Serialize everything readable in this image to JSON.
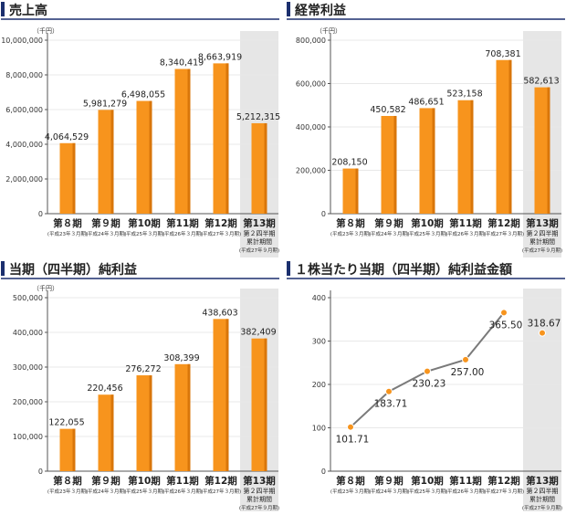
{
  "colors": {
    "bar": "#f7941d",
    "bar_dark": "#d9760a",
    "axis": "#555555",
    "grid": "#e8e8e8",
    "header_accent": "#1b2f6e",
    "header_line": "#1b2f6e",
    "shade": "#e6e6e6",
    "line": "#7a7a7a",
    "point": "#f7941d"
  },
  "periods": [
    "第８期",
    "第９期",
    "第10期",
    "第11期",
    "第12期",
    "第13期"
  ],
  "period_subs": [
    "(平成23年３月期)",
    "(平成24年３月期)",
    "(平成25年３月期)",
    "(平成26年３月期)",
    "(平成27年３月期)"
  ],
  "last_period_notes": [
    "第２四半期",
    "累計期間",
    "(平成27年９月期)"
  ],
  "chart_data": [
    {
      "type": "bar",
      "title": "売上高",
      "unit": "（千円）",
      "categories": [
        "第８期",
        "第９期",
        "第10期",
        "第11期",
        "第12期",
        "第13期"
      ],
      "values": [
        4064529,
        5981279,
        6498055,
        8340419,
        8663919,
        5212315
      ],
      "value_labels": [
        "4,064,529",
        "5,981,279",
        "6,498,055",
        "8,340,419",
        "8,663,919",
        "5,212,315"
      ],
      "ylim": [
        0,
        10000000
      ],
      "yticks": [
        0,
        2000000,
        4000000,
        6000000,
        8000000,
        10000000
      ],
      "ytick_labels": [
        "0",
        "2,000,000",
        "4,000,000",
        "6,000,000",
        "8,000,000",
        "10,000,000"
      ],
      "shaded_last": true
    },
    {
      "type": "bar",
      "title": "経常利益",
      "unit": "（千円）",
      "categories": [
        "第８期",
        "第９期",
        "第10期",
        "第11期",
        "第12期",
        "第13期"
      ],
      "values": [
        208150,
        450582,
        486651,
        523158,
        708381,
        582613
      ],
      "value_labels": [
        "208,150",
        "450,582",
        "486,651",
        "523,158",
        "708,381",
        "582,613"
      ],
      "ylim": [
        0,
        800000
      ],
      "yticks": [
        0,
        200000,
        400000,
        600000,
        800000
      ],
      "ytick_labels": [
        "0",
        "200,000",
        "400,000",
        "600,000",
        "800,000"
      ],
      "shaded_last": true
    },
    {
      "type": "bar",
      "title": "当期（四半期）純利益",
      "unit": "（千円）",
      "categories": [
        "第８期",
        "第９期",
        "第10期",
        "第11期",
        "第12期",
        "第13期"
      ],
      "values": [
        122055,
        220456,
        276272,
        308399,
        438603,
        382409
      ],
      "value_labels": [
        "122,055",
        "220,456",
        "276,272",
        "308,399",
        "438,603",
        "382,409"
      ],
      "ylim": [
        0,
        500000
      ],
      "yticks": [
        0,
        100000,
        200000,
        300000,
        400000,
        500000
      ],
      "ytick_labels": [
        "0",
        "100,000",
        "200,000",
        "300,000",
        "400,000",
        "500,000"
      ],
      "shaded_last": true
    },
    {
      "type": "line",
      "title": "１株当たり当期（四半期）純利益金額",
      "unit": "",
      "categories": [
        "第８期",
        "第９期",
        "第10期",
        "第11期",
        "第12期",
        "第13期"
      ],
      "values": [
        101.71,
        183.71,
        230.23,
        257.0,
        365.5,
        318.67
      ],
      "value_labels": [
        "101.71",
        "183.71",
        "230.23",
        "257.00",
        "365.50",
        "318.67"
      ],
      "ylim": [
        0,
        400
      ],
      "yticks": [
        0,
        100,
        200,
        300,
        400
      ],
      "ytick_labels": [
        "0",
        "100",
        "200",
        "300",
        "400"
      ],
      "shaded_last": true,
      "last_point_unconnected": true
    }
  ]
}
